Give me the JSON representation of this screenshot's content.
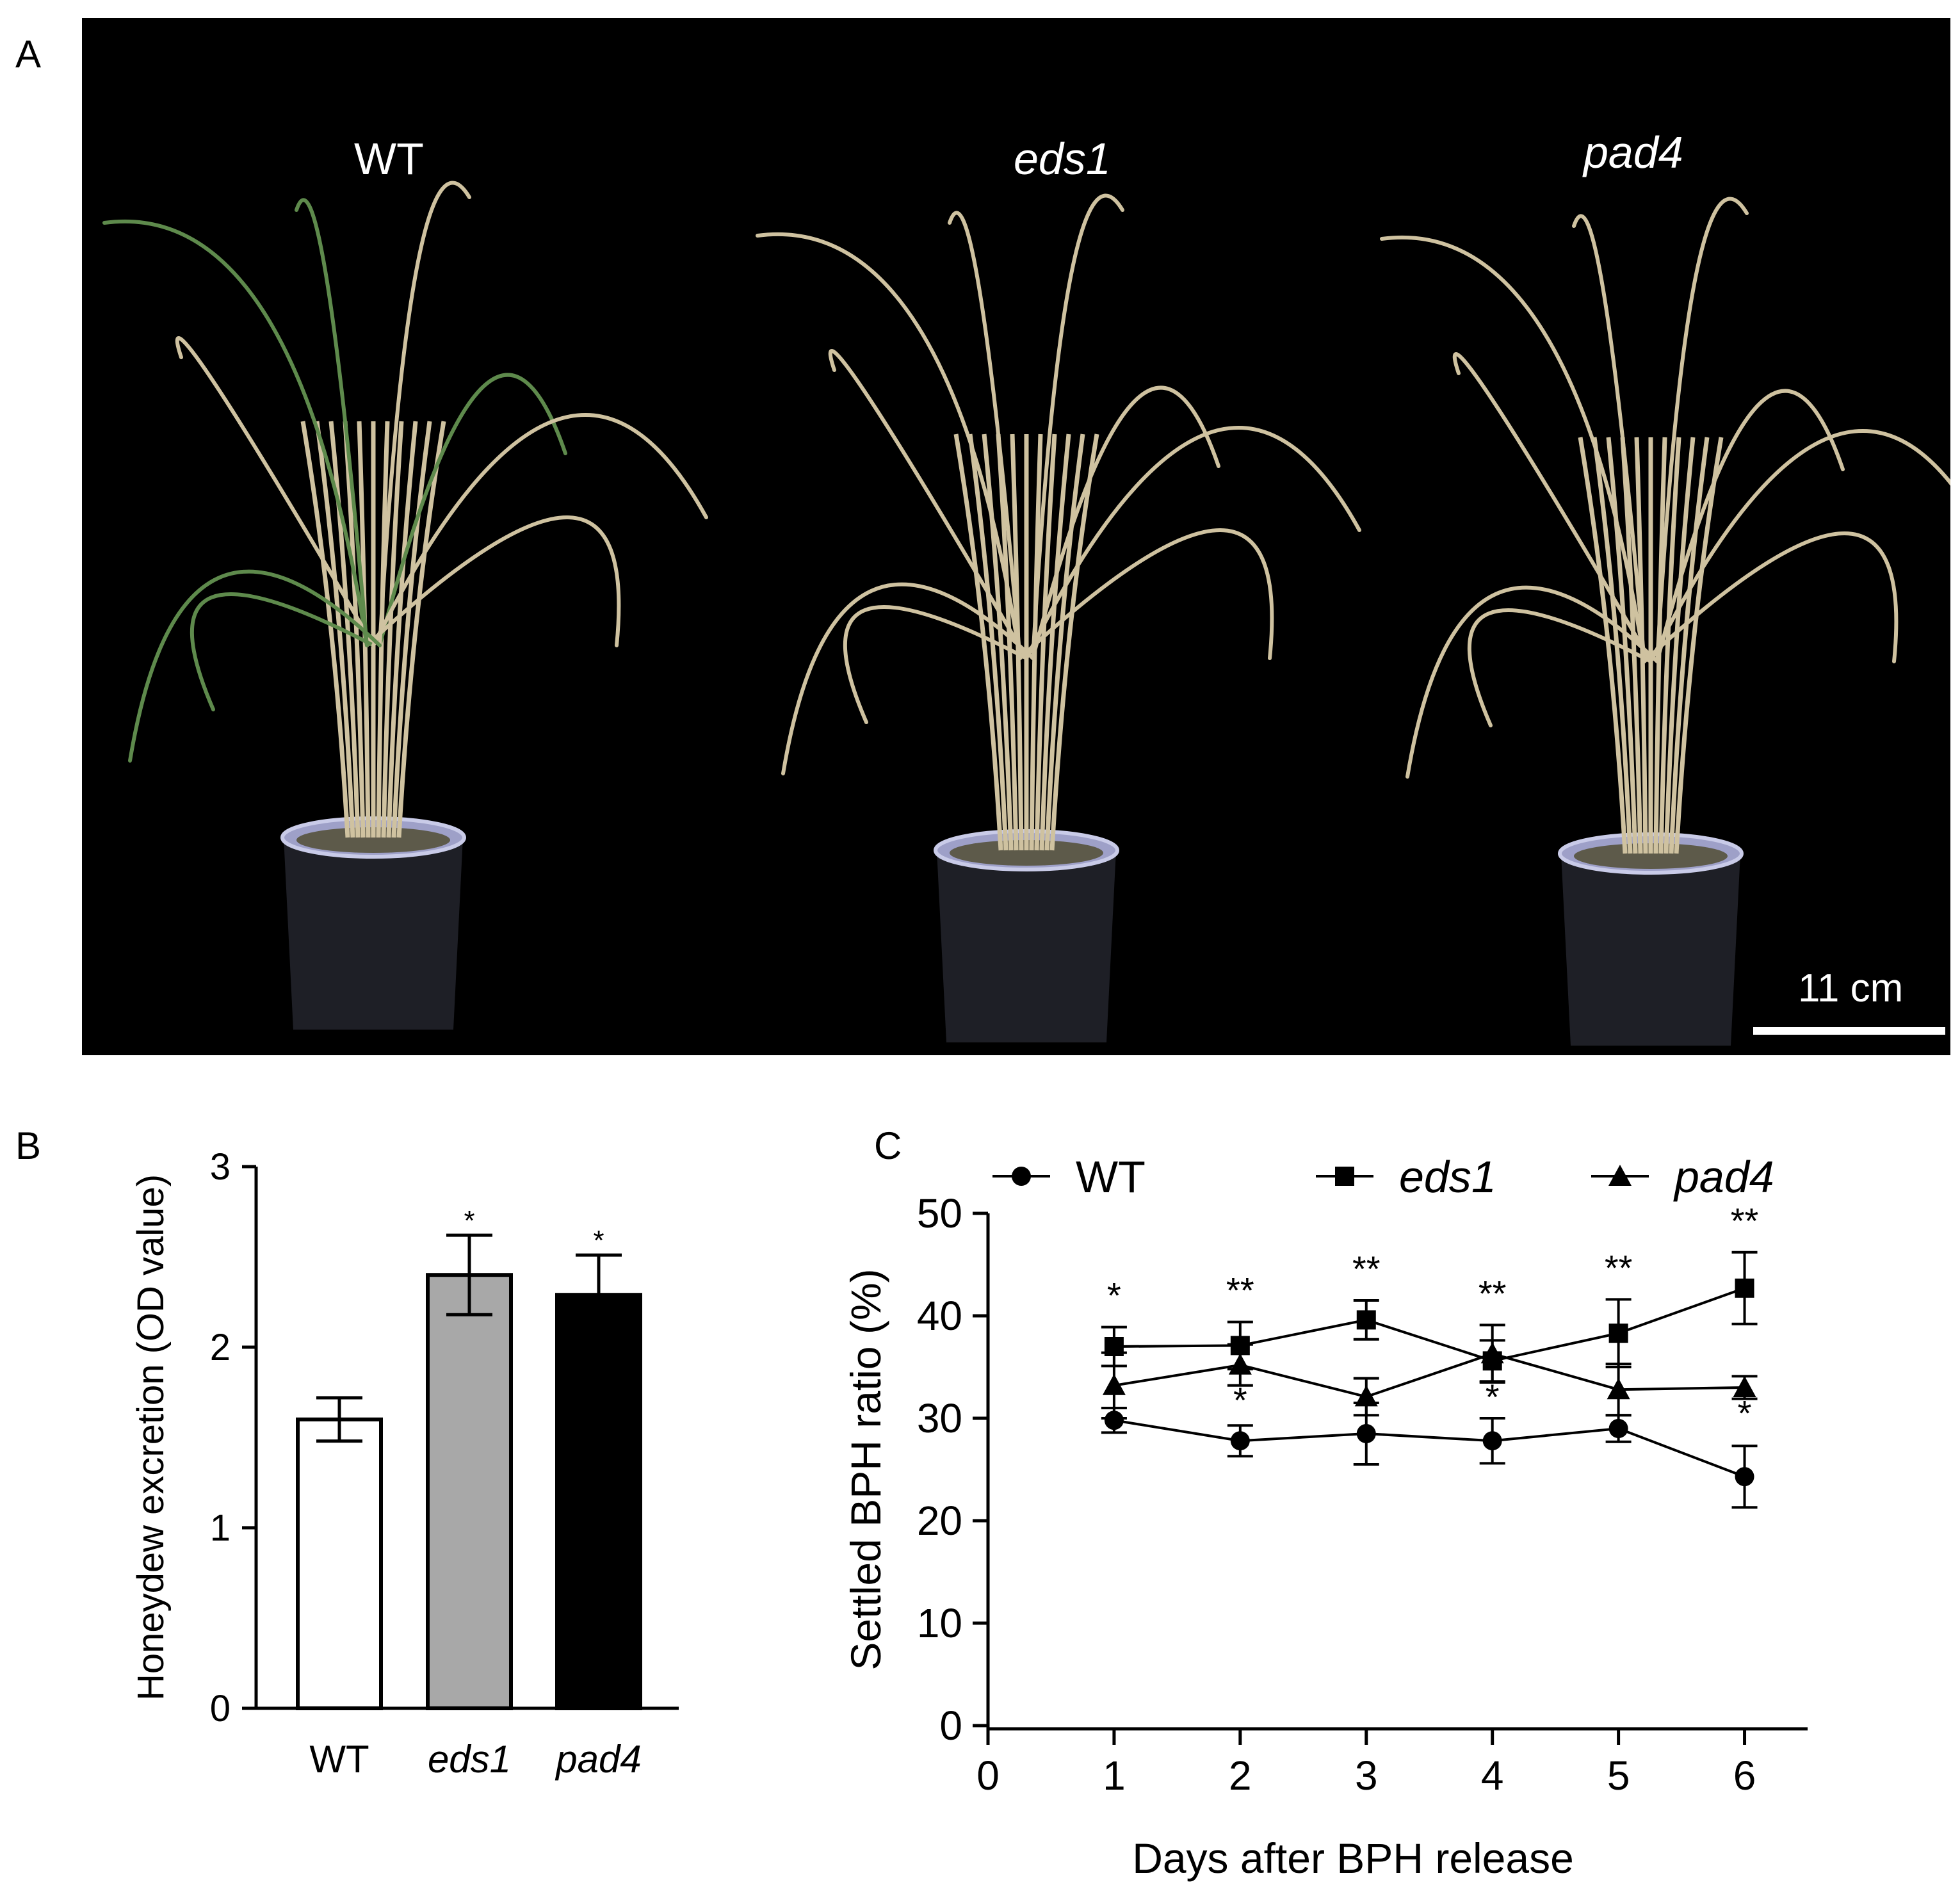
{
  "panel_labels": {
    "a": "A",
    "b": "B",
    "c": "C"
  },
  "photo": {
    "plants": [
      {
        "label": "WT",
        "italic": false
      },
      {
        "label": "eds1",
        "italic": true
      },
      {
        "label": "pad4",
        "italic": true
      }
    ],
    "scale_bar_label": "11 cm"
  },
  "colors": {
    "background_photo": "#000000",
    "wt_bar": "#ffffff",
    "eds1_bar": "#a8a8a8",
    "pad4_bar": "#000000",
    "leaf_green": "#5e8a4c",
    "leaf_straw": "#cfc2a0"
  },
  "chart_data": [
    {
      "type": "bar",
      "panel": "B",
      "categories": [
        "WT",
        "eds1",
        "pad4"
      ],
      "categories_italic": [
        false,
        true,
        true
      ],
      "values": [
        1.6,
        2.4,
        2.29
      ],
      "errors": [
        0.12,
        0.22,
        0.22
      ],
      "significance": [
        "",
        "*",
        "*"
      ],
      "ylabel": "Honeydew excretion (OD value)",
      "xlabel": "",
      "ylim": [
        0,
        3
      ],
      "yticks": [
        "0",
        "1",
        "2",
        "3"
      ],
      "grid": false
    },
    {
      "type": "line",
      "panel": "C",
      "x": [
        1,
        2,
        3,
        4,
        5,
        6
      ],
      "xticks": [
        "0",
        "1",
        "2",
        "3",
        "4",
        "5",
        "6"
      ],
      "xlim": [
        0,
        6.5
      ],
      "ylim": [
        0,
        50
      ],
      "yticks": [
        "0",
        "10",
        "20",
        "30",
        "40",
        "50"
      ],
      "xlabel": "Days after BPH release",
      "ylabel": "Settled BPH ratio (%)",
      "legend_position": "top",
      "grid": false,
      "series": [
        {
          "name": "WT",
          "italic": false,
          "marker": "circle",
          "values": [
            29.8,
            27.8,
            28.5,
            27.8,
            29.0,
            24.3
          ],
          "errors": [
            1.2,
            1.5,
            3.0,
            2.2,
            1.3,
            3.0
          ]
        },
        {
          "name": "eds1",
          "italic": true,
          "marker": "square",
          "values": [
            37.0,
            37.1,
            39.6,
            35.6,
            38.3,
            42.7
          ],
          "errors": [
            1.9,
            2.3,
            1.9,
            2.0,
            3.3,
            3.5
          ]
        },
        {
          "name": "pad4",
          "italic": true,
          "marker": "triangle",
          "values": [
            33.2,
            35.2,
            32.1,
            36.3,
            32.8,
            33.0
          ],
          "errors": [
            3.2,
            2.0,
            1.8,
            2.8,
            2.5,
            1.1
          ]
        }
      ],
      "annotations_top": [
        "*",
        "**",
        "**",
        "**",
        "**",
        "**"
      ],
      "annotations_bottom": [
        "",
        "*",
        "",
        "*",
        "",
        "*"
      ]
    }
  ]
}
